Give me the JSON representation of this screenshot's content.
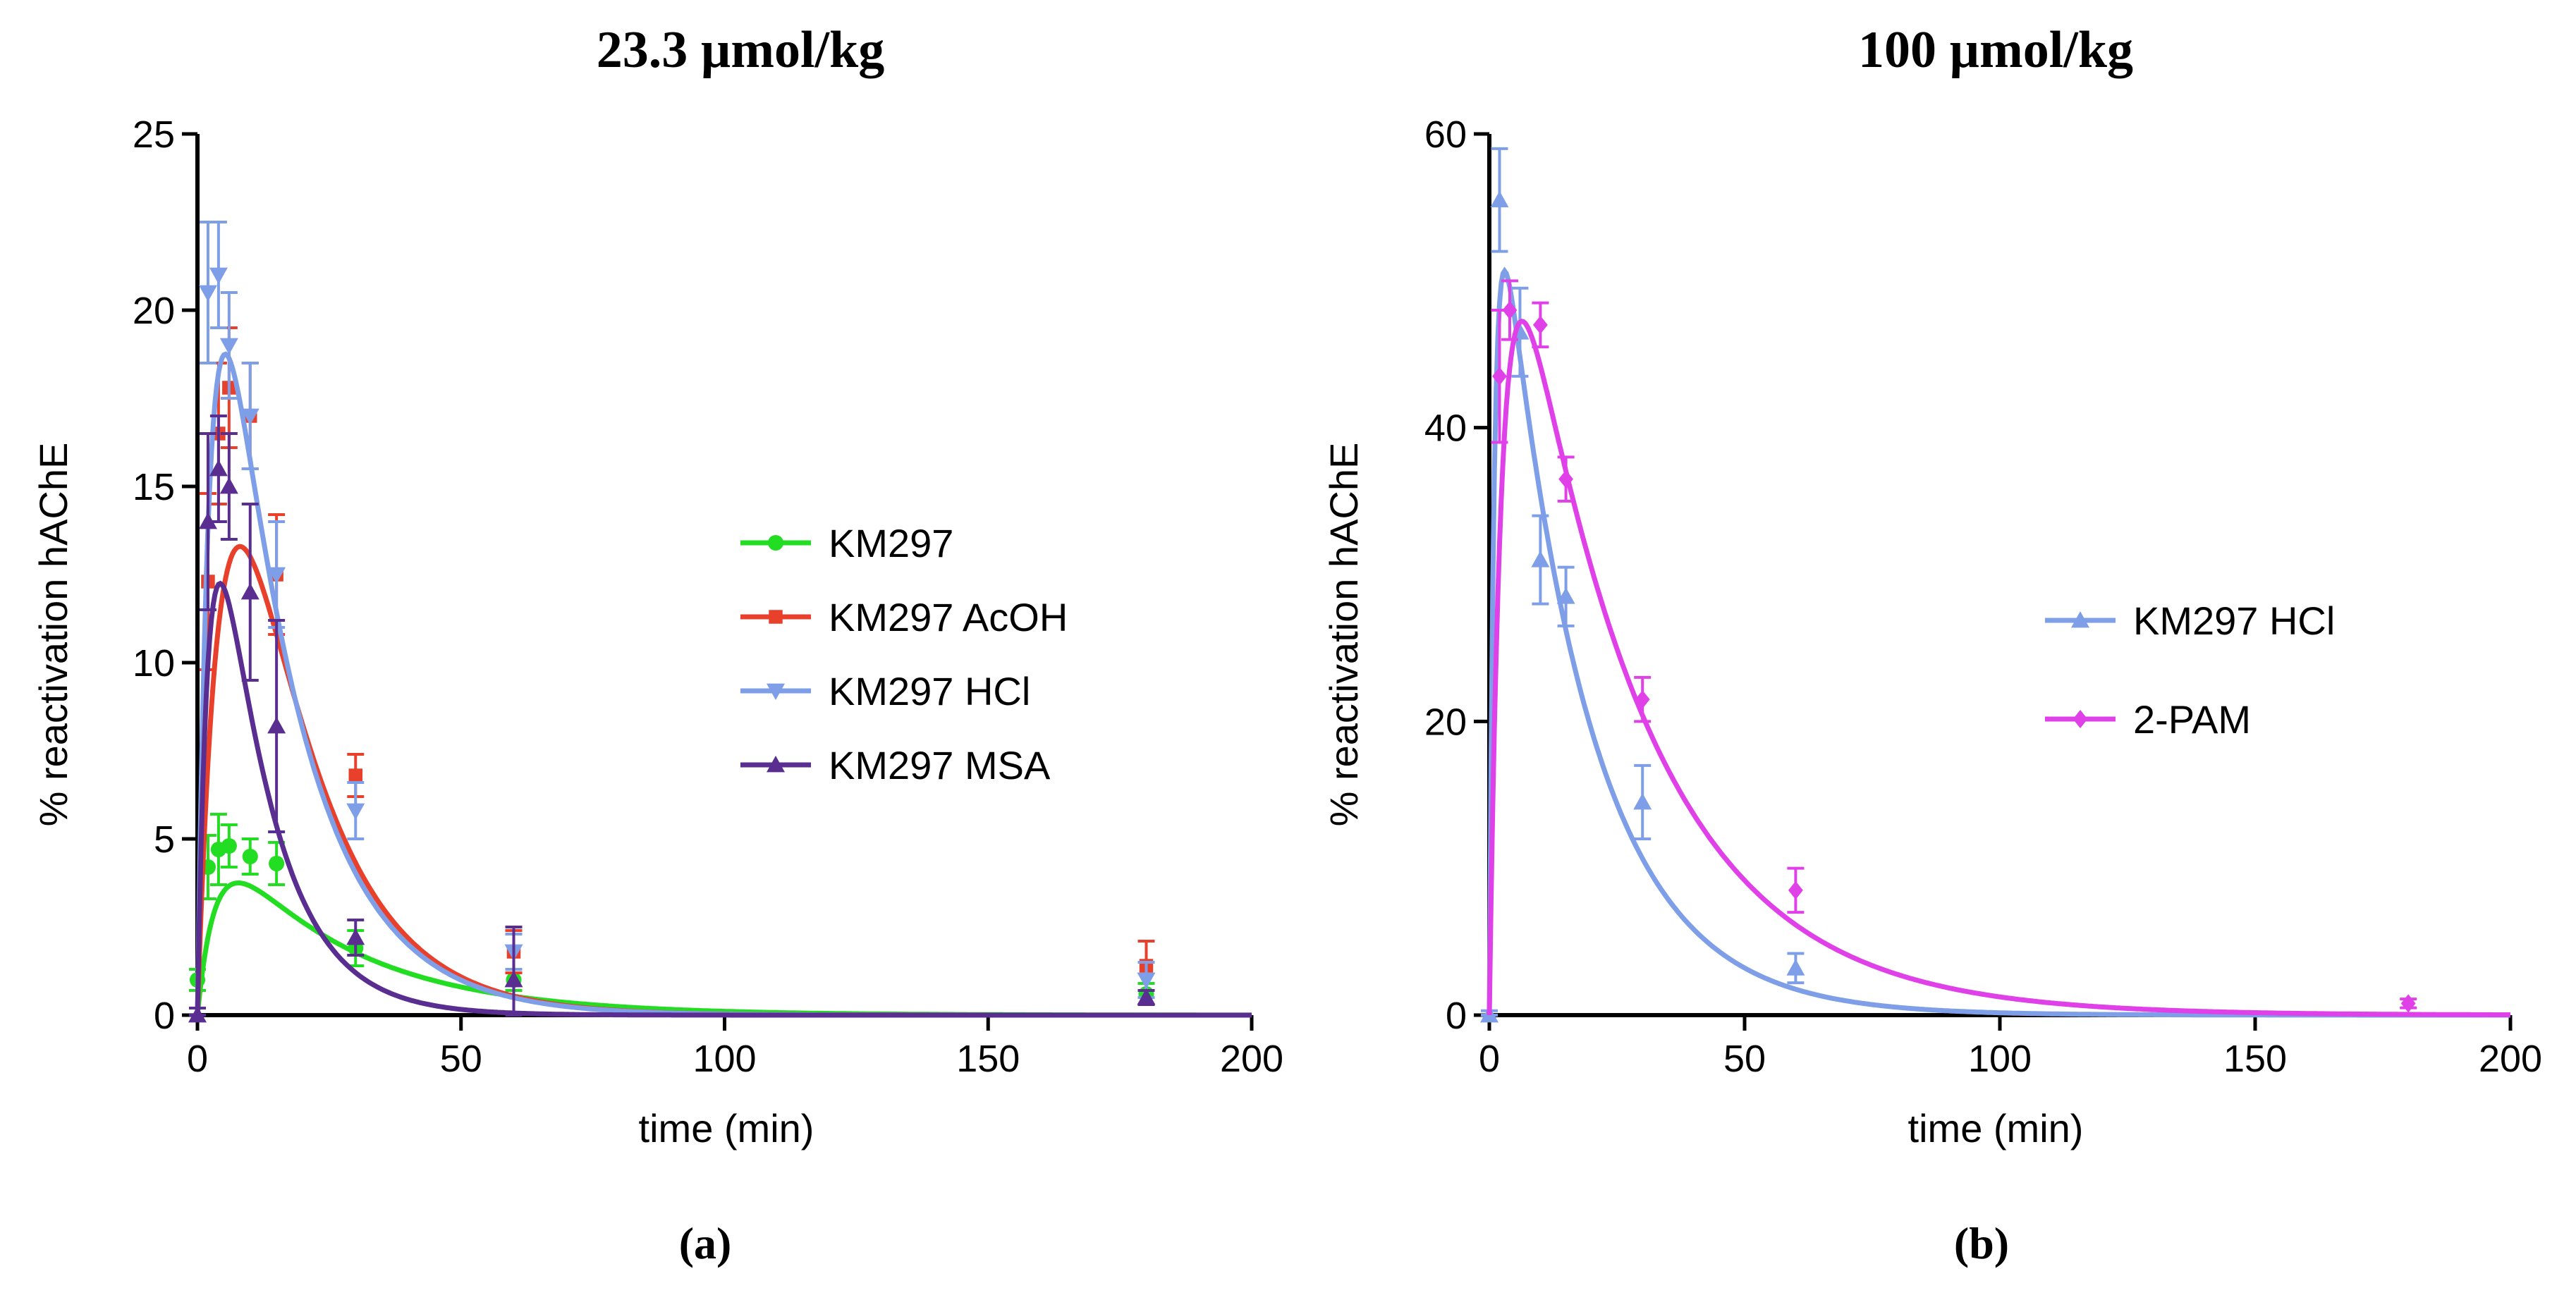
{
  "chart_data": [
    {
      "panel": "(a)",
      "type": "line",
      "title": "23.3 µmol/kg",
      "xlabel": "time (min)",
      "ylabel": "% reactivation hAChE",
      "xlim": [
        0,
        200
      ],
      "ylim": [
        0,
        25
      ],
      "xticks": [
        0,
        50,
        100,
        150,
        200
      ],
      "yticks": [
        0,
        5,
        10,
        15,
        20,
        25
      ],
      "legend_position": "center-right",
      "series": [
        {
          "name": "KM297",
          "color": "#22dd22",
          "marker": "circle",
          "points": [
            {
              "x": 0,
              "y": 1.0,
              "err": 0.3
            },
            {
              "x": 2,
              "y": 4.2,
              "err": 0.9
            },
            {
              "x": 4,
              "y": 4.7,
              "err": 1.0
            },
            {
              "x": 6,
              "y": 4.8,
              "err": 0.6
            },
            {
              "x": 10,
              "y": 4.5,
              "err": 0.5
            },
            {
              "x": 15,
              "y": 4.3,
              "err": 0.6
            },
            {
              "x": 30,
              "y": 1.9,
              "err": 0.5
            },
            {
              "x": 60,
              "y": 1.0,
              "err": 0.3
            },
            {
              "x": 180,
              "y": 0.6,
              "err": 0.3
            }
          ],
          "fit": {
            "amplitude": 5.9,
            "k_absorption": 0.3,
            "k_elimination": 0.04
          }
        },
        {
          "name": "KM297 AcOH",
          "color": "#e8402a",
          "marker": "square",
          "points": [
            {
              "x": 2,
              "y": 12.3,
              "err": 2.5
            },
            {
              "x": 4,
              "y": 16.5,
              "err": 2.0
            },
            {
              "x": 6,
              "y": 17.8,
              "err": 1.7
            },
            {
              "x": 10,
              "y": 17.0,
              "err": 1.5
            },
            {
              "x": 15,
              "y": 12.5,
              "err": 1.7
            },
            {
              "x": 30,
              "y": 6.8,
              "err": 0.6
            },
            {
              "x": 60,
              "y": 1.8,
              "err": 0.6
            },
            {
              "x": 180,
              "y": 1.4,
              "err": 0.7
            }
          ],
          "fit": {
            "amplitude": 36.0,
            "k_absorption": 0.2,
            "k_elimination": 0.07
          }
        },
        {
          "name": "KM297 HCl",
          "color": "#7e9fe8",
          "marker": "triangle-down",
          "points": [
            {
              "x": 2,
              "y": 20.5,
              "err": 2.0
            },
            {
              "x": 4,
              "y": 21.0,
              "err": 1.5
            },
            {
              "x": 6,
              "y": 19.0,
              "err": 1.5
            },
            {
              "x": 10,
              "y": 17.0,
              "err": 1.5
            },
            {
              "x": 15,
              "y": 12.5,
              "err": 1.5
            },
            {
              "x": 30,
              "y": 5.8,
              "err": 0.8
            },
            {
              "x": 60,
              "y": 1.8,
              "err": 0.5
            },
            {
              "x": 180,
              "y": 1.0,
              "err": 0.5
            }
          ],
          "fit": {
            "amplitude": 32.9,
            "k_absorption": 0.4,
            "k_elimination": 0.07
          }
        },
        {
          "name": "KM297 MSA",
          "color": "#5a2d91",
          "marker": "triangle-up",
          "points": [
            {
              "x": 0,
              "y": 0.0,
              "err": 0.2
            },
            {
              "x": 2,
              "y": 14.0,
              "err": 2.5
            },
            {
              "x": 4,
              "y": 15.5,
              "err": 1.5
            },
            {
              "x": 6,
              "y": 15.0,
              "err": 1.5
            },
            {
              "x": 10,
              "y": 12.0,
              "err": 2.5
            },
            {
              "x": 15,
              "y": 8.2,
              "err": 3.0
            },
            {
              "x": 30,
              "y": 2.2,
              "err": 0.5
            },
            {
              "x": 60,
              "y": 1.0,
              "err": 1.5
            },
            {
              "x": 180,
              "y": 0.5,
              "err": 0.2
            }
          ],
          "fit": {
            "amplitude": 24.2,
            "k_absorption": 0.45,
            "k_elimination": 0.1
          }
        }
      ]
    },
    {
      "panel": "(b)",
      "type": "line",
      "title": "100 µmol/kg",
      "xlabel": "time (min)",
      "ylabel": "% reactivation hAChE",
      "xlim": [
        0,
        200
      ],
      "ylim": [
        0,
        60
      ],
      "xticks": [
        0,
        50,
        100,
        150,
        200
      ],
      "yticks": [
        0,
        20,
        40,
        60
      ],
      "legend_position": "center-right",
      "series": [
        {
          "name": "KM297 HCl",
          "color": "#7e9fe8",
          "marker": "triangle-up",
          "points": [
            {
              "x": 0,
              "y": 0.0,
              "err": 0.3
            },
            {
              "x": 2,
              "y": 55.5,
              "err": 3.5
            },
            {
              "x": 6,
              "y": 46.5,
              "err": 3.0
            },
            {
              "x": 10,
              "y": 31.0,
              "err": 3.0
            },
            {
              "x": 15,
              "y": 28.5,
              "err": 2.0
            },
            {
              "x": 30,
              "y": 14.5,
              "err": 2.5
            },
            {
              "x": 60,
              "y": 3.2,
              "err": 1.0
            }
          ],
          "fit": {
            "amplitude": 64.5,
            "k_absorption": 1.0,
            "k_elimination": 0.06
          }
        },
        {
          "name": "2-PAM",
          "color": "#e040e8",
          "marker": "diamond",
          "points": [
            {
              "x": 2,
              "y": 43.5,
              "err": 4.5
            },
            {
              "x": 4,
              "y": 48.0,
              "err": 2.0
            },
            {
              "x": 10,
              "y": 47.0,
              "err": 1.5
            },
            {
              "x": 15,
              "y": 36.5,
              "err": 1.5
            },
            {
              "x": 30,
              "y": 21.5,
              "err": 1.5
            },
            {
              "x": 60,
              "y": 8.5,
              "err": 1.5
            },
            {
              "x": 180,
              "y": 0.8,
              "err": 0.3
            }
          ],
          "fit": {
            "amplitude": 67.8,
            "k_absorption": 0.4,
            "k_elimination": 0.04
          }
        }
      ]
    }
  ]
}
